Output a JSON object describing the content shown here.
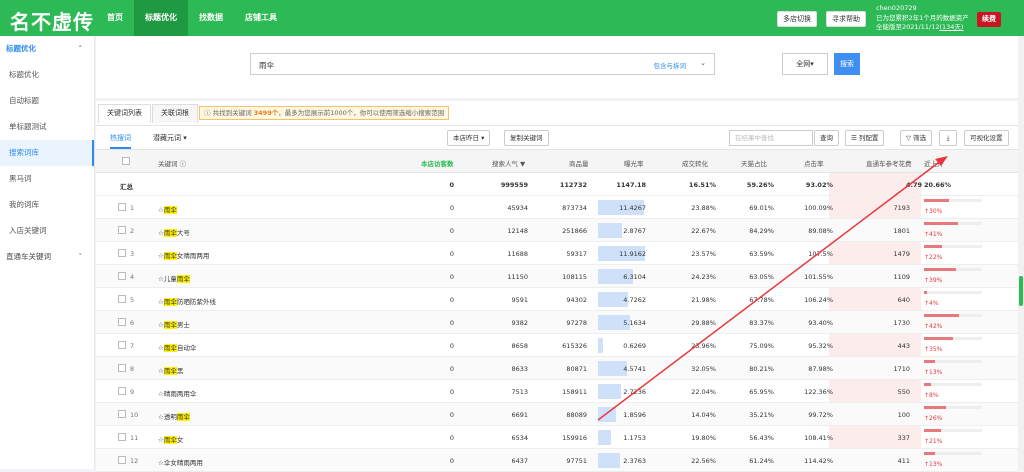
{
  "header": {
    "logo": "名不虚传",
    "nav": [
      "首页",
      "标题优化",
      "找数据",
      "店铺工具"
    ],
    "nav_active": 1,
    "btn_multi": "多店切换",
    "btn_help": "寻求帮助",
    "user_line1": "chen020729",
    "user_line2": "已为您累积2年1个月的数据资产",
    "user_line3": "全能版至2021/11/12",
    "user_days": "(134天)",
    "logout": "续费"
  },
  "sidebar": {
    "items": [
      {
        "label": "标题优化",
        "type": "group",
        "chev": "˄"
      },
      {
        "label": "标题优化",
        "type": "item"
      },
      {
        "label": "自动标题",
        "type": "item"
      },
      {
        "label": "单标题测试",
        "type": "item"
      },
      {
        "label": "搜索词库",
        "type": "active"
      },
      {
        "label": "黑马词",
        "type": "item"
      },
      {
        "label": "我的词库",
        "type": "item"
      },
      {
        "label": "入店关键词",
        "type": "item"
      },
      {
        "label": "直通车关键词",
        "type": "group2",
        "chev": "˅"
      }
    ]
  },
  "search": {
    "value": "雨伞",
    "option": "包含与拆词",
    "scope": "全网▾",
    "button": "搜索"
  },
  "tabs": [
    "关键词列表",
    "关联词根"
  ],
  "notice": {
    "pre": "ⓘ 共找到关键词 ",
    "count": "3499个",
    "post": "，最多为您展示前1000个，你可以使用筛选缩小搜索范围"
  },
  "toolbar": {
    "hot": "热搜词",
    "hot2": "潜藏元词 ▾",
    "date_btn": "本店昨日 ▾",
    "copy_btn": "复制关键词",
    "filter_placeholder": "在结果中查找",
    "query": "查询",
    "columns": "☰ 列配置",
    "filter": "▽ 筛选",
    "download": "⤓",
    "visual": "可视化设置"
  },
  "table": {
    "headers": [
      "关键词 ⓘ",
      "本店访客数",
      "搜索人气 ▼",
      "商品量",
      "曝光率",
      "成交转化",
      "天猫占比",
      "点击率",
      "直通车参考花费",
      "近上升"
    ],
    "summary": {
      "label": "汇总",
      "visitors": "0",
      "popularity": "999559",
      "goods": "112732",
      "exposure": "1147.18",
      "conv": "16.51%",
      "tmall": "59.26%",
      "ctr": "93.02%",
      "cost": "4.79",
      "rise": "20.66%"
    },
    "rows": [
      {
        "no": "1",
        "pre": "",
        "hl": "雨伞",
        "post": "",
        "visitors": "0",
        "popularity": "45934",
        "goods": "873734",
        "exposure": "11.4267",
        "exp_ratio": 0.95,
        "conv": "23.88%",
        "tmall": "69.01%",
        "ctr": "100.09%",
        "cost": "7193",
        "rise": "↑30%",
        "rise_ratio": 0.3
      },
      {
        "no": "2",
        "pre": "",
        "hl": "雨伞",
        "post": "大号",
        "visitors": "0",
        "popularity": "12148",
        "goods": "251866",
        "exposure": "2.8767",
        "exp_ratio": 0.5,
        "conv": "22.67%",
        "tmall": "84.29%",
        "ctr": "89.08%",
        "cost": "1801",
        "rise": "↑41%",
        "rise_ratio": 0.41
      },
      {
        "no": "3",
        "pre": "",
        "hl": "雨伞",
        "post": "女晴雨两用",
        "visitors": "0",
        "popularity": "11688",
        "goods": "59317",
        "exposure": "11.9162",
        "exp_ratio": 0.97,
        "conv": "23.57%",
        "tmall": "63.59%",
        "ctr": "107.5%",
        "cost": "1479",
        "rise": "↑22%",
        "rise_ratio": 0.22
      },
      {
        "no": "4",
        "pre": "儿童",
        "hl": "雨伞",
        "post": "",
        "visitors": "0",
        "popularity": "11150",
        "goods": "108115",
        "exposure": "6.3104",
        "exp_ratio": 0.72,
        "conv": "24.23%",
        "tmall": "63.05%",
        "ctr": "101.55%",
        "cost": "1109",
        "rise": "↑39%",
        "rise_ratio": 0.39
      },
      {
        "no": "5",
        "pre": "",
        "hl": "雨伞",
        "post": "防晒防紫外线",
        "visitors": "0",
        "popularity": "9591",
        "goods": "94302",
        "exposure": "4.7262",
        "exp_ratio": 0.62,
        "conv": "21.98%",
        "tmall": "67.78%",
        "ctr": "106.24%",
        "cost": "640",
        "rise": "↑4%",
        "rise_ratio": 0.04
      },
      {
        "no": "6",
        "pre": "",
        "hl": "雨伞",
        "post": "男士",
        "visitors": "0",
        "popularity": "9382",
        "goods": "97278",
        "exposure": "5.1634",
        "exp_ratio": 0.66,
        "conv": "29.88%",
        "tmall": "83.37%",
        "ctr": "93.40%",
        "cost": "1730",
        "rise": "↑42%",
        "rise_ratio": 0.42
      },
      {
        "no": "7",
        "pre": "",
        "hl": "雨伞",
        "post": "自动伞",
        "visitors": "0",
        "popularity": "8658",
        "goods": "615326",
        "exposure": "0.6269",
        "exp_ratio": 0.1,
        "conv": "23.96%",
        "tmall": "75.09%",
        "ctr": "95.32%",
        "cost": "443",
        "rise": "↑35%",
        "rise_ratio": 0.35
      },
      {
        "no": "8",
        "pre": "",
        "hl": "雨伞",
        "post": "黑",
        "visitors": "0",
        "popularity": "8633",
        "goods": "80871",
        "exposure": "4.5741",
        "exp_ratio": 0.6,
        "conv": "32.05%",
        "tmall": "80.21%",
        "ctr": "87.98%",
        "cost": "1710",
        "rise": "↑13%",
        "rise_ratio": 0.13
      },
      {
        "no": "9",
        "pre": "晴雨两用伞",
        "hl": "",
        "post": "",
        "visitors": "0",
        "popularity": "7513",
        "goods": "158911",
        "exposure": "2.7236",
        "exp_ratio": 0.48,
        "conv": "22.04%",
        "tmall": "65.95%",
        "ctr": "122.36%",
        "cost": "550",
        "rise": "↑8%",
        "rise_ratio": 0.08
      },
      {
        "no": "10",
        "pre": "透明",
        "hl": "雨伞",
        "post": "",
        "visitors": "0",
        "popularity": "6691",
        "goods": "88089",
        "exposure": "1.8596",
        "exp_ratio": 0.38,
        "conv": "14.04%",
        "tmall": "35.21%",
        "ctr": "99.72%",
        "cost": "100",
        "rise": "↑26%",
        "rise_ratio": 0.26
      },
      {
        "no": "11",
        "pre": "",
        "hl": "雨伞",
        "post": "女",
        "visitors": "0",
        "popularity": "6534",
        "goods": "159916",
        "exposure": "1.1753",
        "exp_ratio": 0.28,
        "conv": "19.80%",
        "tmall": "56.43%",
        "ctr": "108.41%",
        "cost": "337",
        "rise": "↑21%",
        "rise_ratio": 0.21
      },
      {
        "no": "12",
        "pre": "伞女晴雨两用",
        "hl": "",
        "post": "",
        "visitors": "0",
        "popularity": "6437",
        "goods": "97751",
        "exposure": "2.3763",
        "exp_ratio": 0.45,
        "conv": "22.56%",
        "tmall": "61.24%",
        "ctr": "114.42%",
        "cost": "411",
        "rise": "↑13%",
        "rise_ratio": 0.13
      }
    ]
  },
  "colors": {
    "brand": "#2db955",
    "accent": "#2d8cf0",
    "highlight": "#fff100",
    "annotation": "#e8383d"
  }
}
